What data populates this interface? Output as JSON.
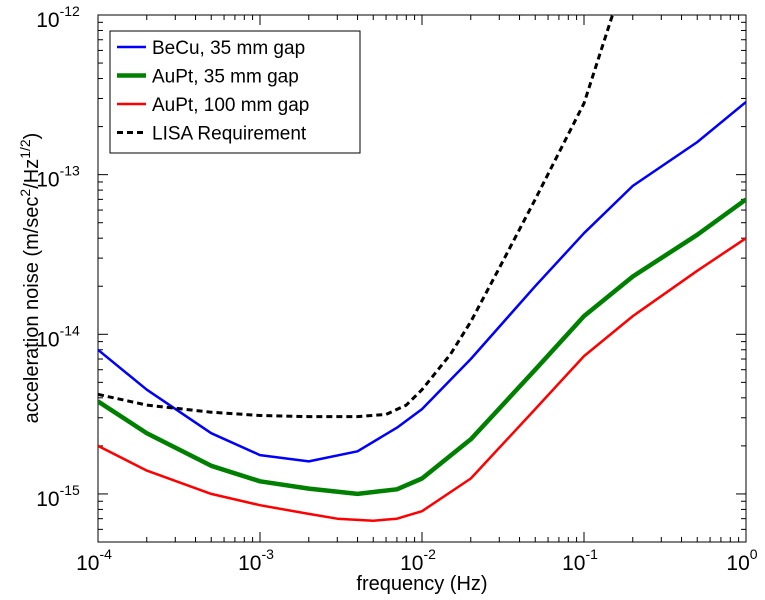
{
  "chart_data": {
    "type": "line",
    "title": "",
    "xlabel": "frequency (Hz)",
    "ylabel": {
      "main": "acceleration noise (m/sec",
      "sup1": "2",
      "mid": "/Hz",
      "sup2": "1/2",
      "end": ")"
    },
    "x_scale": "log",
    "y_scale": "log",
    "xlim": [
      0.0001,
      1
    ],
    "ylim": [
      5e-16,
      1e-12
    ],
    "x_ticks": [
      {
        "base": "10",
        "exp": "-4",
        "value": 0.0001
      },
      {
        "base": "10",
        "exp": "-3",
        "value": 0.001
      },
      {
        "base": "10",
        "exp": "-2",
        "value": 0.01
      },
      {
        "base": "10",
        "exp": "-1",
        "value": 0.1
      },
      {
        "base": "10",
        "exp": "0",
        "value": 1
      }
    ],
    "y_ticks": [
      {
        "base": "10",
        "exp": "-15",
        "value": 1e-15
      },
      {
        "base": "10",
        "exp": "-14",
        "value": 1e-14
      },
      {
        "base": "10",
        "exp": "-13",
        "value": 1e-13
      },
      {
        "base": "10",
        "exp": "-12",
        "value": 1e-12
      }
    ],
    "grid": false,
    "legend_position": "top-left",
    "series": [
      {
        "name": "BeCu, 35 mm gap",
        "color": "#0000ff",
        "dash": "solid",
        "x": [
          0.0001,
          0.0002,
          0.0005,
          0.001,
          0.002,
          0.004,
          0.007,
          0.01,
          0.02,
          0.05,
          0.1,
          0.2,
          0.5,
          1
        ],
        "y": [
          8e-15,
          4.5e-15,
          2.4e-15,
          1.75e-15,
          1.6e-15,
          1.85e-15,
          2.6e-15,
          3.4e-15,
          7e-15,
          2e-14,
          4.3e-14,
          8.5e-14,
          1.6e-13,
          2.85e-13
        ]
      },
      {
        "name": "AuPt, 35 mm gap",
        "color": "#008000",
        "dash": "solid",
        "x": [
          0.0001,
          0.0002,
          0.0005,
          0.001,
          0.002,
          0.004,
          0.007,
          0.01,
          0.02,
          0.05,
          0.1,
          0.2,
          0.5,
          1
        ],
        "y": [
          3.8e-15,
          2.4e-15,
          1.5e-15,
          1.2e-15,
          1.08e-15,
          1e-15,
          1.07e-15,
          1.25e-15,
          2.2e-15,
          6e-15,
          1.3e-14,
          2.3e-14,
          4.2e-14,
          7e-14
        ]
      },
      {
        "name": "AuPt, 100 mm gap",
        "color": "#ff0000",
        "dash": "solid",
        "x": [
          0.0001,
          0.0002,
          0.0005,
          0.001,
          0.002,
          0.003,
          0.005,
          0.007,
          0.01,
          0.02,
          0.05,
          0.1,
          0.2,
          0.5,
          1
        ],
        "y": [
          2e-15,
          1.4e-15,
          1e-15,
          8.5e-16,
          7.5e-16,
          7e-16,
          6.8e-16,
          7e-16,
          7.8e-16,
          1.25e-15,
          3.4e-15,
          7.3e-15,
          1.3e-14,
          2.5e-14,
          4e-14
        ]
      },
      {
        "name": "LISA Requirement",
        "color": "#000000",
        "dash": "dashed",
        "x": [
          0.0001,
          0.0002,
          0.0005,
          0.001,
          0.002,
          0.004,
          0.006,
          0.008,
          0.01,
          0.015,
          0.02,
          0.03,
          0.05,
          0.1,
          0.15
        ],
        "y": [
          4.2e-15,
          3.6e-15,
          3.25e-15,
          3.1e-15,
          3.05e-15,
          3.05e-15,
          3.15e-15,
          3.6e-15,
          4.5e-15,
          7.5e-15,
          1.2e-14,
          2.6e-14,
          7e-14,
          2.8e-13,
          1e-12
        ]
      }
    ]
  }
}
